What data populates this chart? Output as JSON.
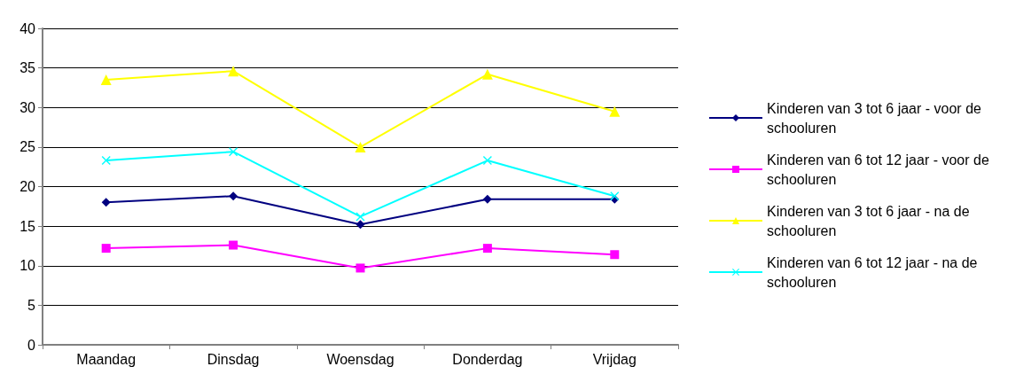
{
  "chart_data": {
    "type": "line",
    "categories": [
      "Maandag",
      "Dinsdag",
      "Woensdag",
      "Donderdag",
      "Vrijdag"
    ],
    "series": [
      {
        "name": "Kinderen van 3 tot 6 jaar - voor de schooluren",
        "color": "#000080",
        "marker": "diamond",
        "values": [
          18,
          18.8,
          15.2,
          18.4,
          18.4
        ]
      },
      {
        "name": "Kinderen van 6 tot 12 jaar - voor de schooluren",
        "color": "#ff00ff",
        "marker": "square",
        "values": [
          12.2,
          12.6,
          9.7,
          12.2,
          11.4
        ]
      },
      {
        "name": "Kinderen van 3 tot 6 jaar - na de schooluren",
        "color": "#ffff00",
        "marker": "triangle",
        "values": [
          33.5,
          34.6,
          25,
          34.2,
          29.5
        ]
      },
      {
        "name": "Kinderen van 6 tot 12 jaar - na de schooluren",
        "color": "#00ffff",
        "marker": "cross",
        "values": [
          23.3,
          24.4,
          16.2,
          23.3,
          18.8
        ]
      }
    ],
    "ylim": [
      0,
      40
    ],
    "yticks": [
      0,
      5,
      10,
      15,
      20,
      25,
      30,
      35,
      40
    ],
    "grid": "y",
    "legend": "right"
  }
}
